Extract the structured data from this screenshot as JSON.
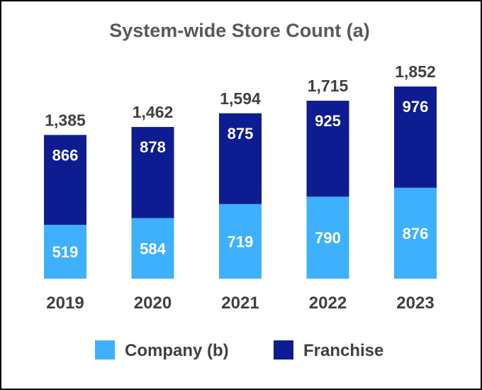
{
  "chart_data": {
    "type": "bar",
    "stacked": true,
    "title": "System-wide Store Count (a)",
    "categories": [
      "2019",
      "2020",
      "2021",
      "2022",
      "2023"
    ],
    "series": [
      {
        "name": "Company (b)",
        "values": [
          519,
          584,
          719,
          790,
          876
        ],
        "color": "#3fb0fb"
      },
      {
        "name": "Franchise",
        "values": [
          866,
          878,
          875,
          925,
          976
        ],
        "color": "#0d1d91"
      }
    ],
    "totals": [
      "1,385",
      "1,462",
      "1,594",
      "1,715",
      "1,852"
    ],
    "xlabel": "",
    "ylabel": "",
    "ylim": [
      0,
      1900
    ],
    "grid": false,
    "legend": "bottom"
  }
}
